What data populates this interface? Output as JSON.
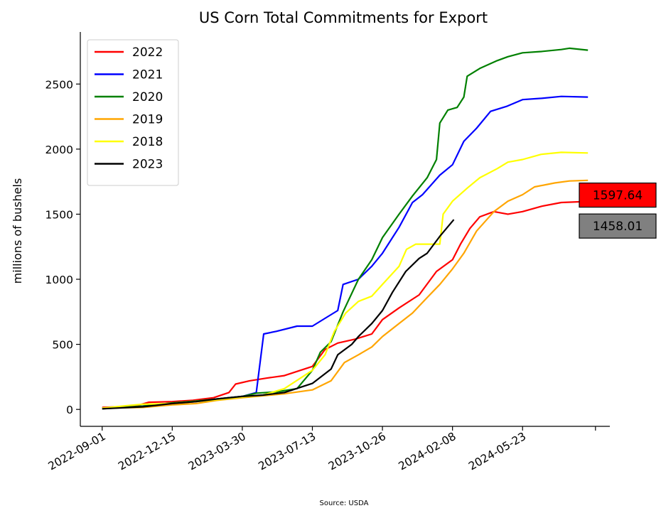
{
  "chart_data": {
    "type": "line",
    "title": "US Corn Total Commitments for Export",
    "xlabel": "",
    "ylabel": "millions of bushels",
    "source": "Source: USDA",
    "x_axis": {
      "start": "2022-09-01",
      "end": "2024-08-29",
      "ticks": [
        "2022-09-01",
        "2022-12-15",
        "2023-03-30",
        "2023-07-13",
        "2023-10-26",
        "2024-02-08",
        "2024-05-23"
      ]
    },
    "ylim": [
      -130,
      2900
    ],
    "y_ticks": [
      0,
      500,
      1000,
      1500,
      2000,
      2500
    ],
    "grid": false,
    "legend_position": "upper-left",
    "series": [
      {
        "name": "2022",
        "color": "#ff0000",
        "points": [
          [
            "2022-09-01",
            15
          ],
          [
            "2022-10-20",
            25
          ],
          [
            "2022-11-10",
            55
          ],
          [
            "2022-12-15",
            60
          ],
          [
            "2023-01-15",
            70
          ],
          [
            "2023-02-15",
            90
          ],
          [
            "2023-03-10",
            130
          ],
          [
            "2023-03-20",
            195
          ],
          [
            "2023-04-10",
            220
          ],
          [
            "2023-05-05",
            240
          ],
          [
            "2023-06-01",
            260
          ],
          [
            "2023-07-13",
            330
          ],
          [
            "2023-08-01",
            460
          ],
          [
            "2023-08-20",
            510
          ],
          [
            "2023-09-15",
            540
          ],
          [
            "2023-10-10",
            580
          ],
          [
            "2023-10-26",
            690
          ],
          [
            "2023-11-20",
            780
          ],
          [
            "2023-12-20",
            880
          ],
          [
            "2024-01-15",
            1060
          ],
          [
            "2024-02-08",
            1150
          ],
          [
            "2024-02-20",
            1270
          ],
          [
            "2024-03-05",
            1390
          ],
          [
            "2024-03-20",
            1480
          ],
          [
            "2024-04-10",
            1520
          ],
          [
            "2024-05-01",
            1500
          ],
          [
            "2024-05-23",
            1520
          ],
          [
            "2024-06-20",
            1560
          ],
          [
            "2024-07-20",
            1590
          ],
          [
            "2024-08-29",
            1598
          ]
        ]
      },
      {
        "name": "2021",
        "color": "#0000ff",
        "points": [
          [
            "2022-09-01",
            10
          ],
          [
            "2022-10-20",
            20
          ],
          [
            "2022-11-20",
            35
          ],
          [
            "2022-12-15",
            45
          ],
          [
            "2023-01-20",
            60
          ],
          [
            "2023-02-20",
            80
          ],
          [
            "2023-03-30",
            100
          ],
          [
            "2023-04-20",
            130
          ],
          [
            "2023-05-01",
            580
          ],
          [
            "2023-05-20",
            600
          ],
          [
            "2023-06-20",
            640
          ],
          [
            "2023-07-13",
            640
          ],
          [
            "2023-08-01",
            700
          ],
          [
            "2023-08-20",
            760
          ],
          [
            "2023-08-28",
            960
          ],
          [
            "2023-09-20",
            1000
          ],
          [
            "2023-10-10",
            1100
          ],
          [
            "2023-10-26",
            1200
          ],
          [
            "2023-11-20",
            1400
          ],
          [
            "2023-12-10",
            1590
          ],
          [
            "2023-12-25",
            1650
          ],
          [
            "2024-01-20",
            1800
          ],
          [
            "2024-02-08",
            1880
          ],
          [
            "2024-02-25",
            2060
          ],
          [
            "2024-03-15",
            2160
          ],
          [
            "2024-04-05",
            2290
          ],
          [
            "2024-04-30",
            2330
          ],
          [
            "2024-05-23",
            2380
          ],
          [
            "2024-06-20",
            2390
          ],
          [
            "2024-07-20",
            2405
          ],
          [
            "2024-08-29",
            2400
          ]
        ]
      },
      {
        "name": "2020",
        "color": "#008000",
        "points": [
          [
            "2022-09-01",
            5
          ],
          [
            "2022-11-01",
            25
          ],
          [
            "2022-12-15",
            50
          ],
          [
            "2023-01-20",
            65
          ],
          [
            "2023-02-20",
            80
          ],
          [
            "2023-03-30",
            100
          ],
          [
            "2023-04-20",
            125
          ],
          [
            "2023-05-20",
            135
          ],
          [
            "2023-06-20",
            160
          ],
          [
            "2023-07-13",
            300
          ],
          [
            "2023-07-25",
            440
          ],
          [
            "2023-08-10",
            520
          ],
          [
            "2023-08-28",
            750
          ],
          [
            "2023-09-20",
            1000
          ],
          [
            "2023-10-10",
            1150
          ],
          [
            "2023-10-26",
            1320
          ],
          [
            "2023-11-20",
            1500
          ],
          [
            "2023-12-10",
            1640
          ],
          [
            "2024-01-01",
            1780
          ],
          [
            "2024-01-15",
            1920
          ],
          [
            "2024-01-20",
            2200
          ],
          [
            "2024-02-01",
            2300
          ],
          [
            "2024-02-15",
            2320
          ],
          [
            "2024-02-25",
            2400
          ],
          [
            "2024-03-01",
            2560
          ],
          [
            "2024-03-20",
            2620
          ],
          [
            "2024-04-15",
            2680
          ],
          [
            "2024-05-01",
            2710
          ],
          [
            "2024-05-23",
            2740
          ],
          [
            "2024-06-20",
            2750
          ],
          [
            "2024-07-20",
            2765
          ],
          [
            "2024-08-01",
            2775
          ],
          [
            "2024-08-29",
            2760
          ]
        ]
      },
      {
        "name": "2019",
        "color": "#ffa500",
        "points": [
          [
            "2022-09-01",
            10
          ],
          [
            "2022-11-01",
            15
          ],
          [
            "2022-12-15",
            35
          ],
          [
            "2023-01-20",
            45
          ],
          [
            "2023-02-20",
            70
          ],
          [
            "2023-03-30",
            90
          ],
          [
            "2023-04-30",
            105
          ],
          [
            "2023-06-01",
            120
          ],
          [
            "2023-07-13",
            150
          ],
          [
            "2023-08-10",
            220
          ],
          [
            "2023-08-30",
            360
          ],
          [
            "2023-09-20",
            420
          ],
          [
            "2023-10-10",
            480
          ],
          [
            "2023-10-26",
            560
          ],
          [
            "2023-11-20",
            660
          ],
          [
            "2023-12-10",
            740
          ],
          [
            "2024-01-01",
            860
          ],
          [
            "2024-01-20",
            960
          ],
          [
            "2024-02-08",
            1080
          ],
          [
            "2024-02-25",
            1200
          ],
          [
            "2024-03-15",
            1370
          ],
          [
            "2024-04-10",
            1520
          ],
          [
            "2024-05-01",
            1600
          ],
          [
            "2024-05-23",
            1650
          ],
          [
            "2024-06-10",
            1710
          ],
          [
            "2024-07-10",
            1740
          ],
          [
            "2024-08-01",
            1755
          ],
          [
            "2024-08-29",
            1760
          ]
        ]
      },
      {
        "name": "2018",
        "color": "#ffff00",
        "points": [
          [
            "2022-09-01",
            10
          ],
          [
            "2022-10-10",
            30
          ],
          [
            "2022-11-01",
            40
          ],
          [
            "2022-12-15",
            45
          ],
          [
            "2023-01-20",
            60
          ],
          [
            "2023-02-20",
            75
          ],
          [
            "2023-03-30",
            95
          ],
          [
            "2023-04-30",
            110
          ],
          [
            "2023-06-01",
            160
          ],
          [
            "2023-07-13",
            300
          ],
          [
            "2023-08-01",
            420
          ],
          [
            "2023-08-15",
            600
          ],
          [
            "2023-09-01",
            740
          ],
          [
            "2023-09-20",
            830
          ],
          [
            "2023-10-10",
            870
          ],
          [
            "2023-10-26",
            960
          ],
          [
            "2023-11-20",
            1100
          ],
          [
            "2023-12-01",
            1230
          ],
          [
            "2023-12-15",
            1270
          ],
          [
            "2024-01-20",
            1270
          ],
          [
            "2024-01-25",
            1500
          ],
          [
            "2024-02-08",
            1600
          ],
          [
            "2024-03-01",
            1700
          ],
          [
            "2024-03-20",
            1780
          ],
          [
            "2024-04-15",
            1850
          ],
          [
            "2024-05-01",
            1900
          ],
          [
            "2024-05-23",
            1920
          ],
          [
            "2024-06-20",
            1960
          ],
          [
            "2024-07-20",
            1975
          ],
          [
            "2024-08-29",
            1970
          ]
        ]
      },
      {
        "name": "2023",
        "color": "#000000",
        "points": [
          [
            "2022-09-01",
            5
          ],
          [
            "2022-11-01",
            20
          ],
          [
            "2022-12-15",
            45
          ],
          [
            "2023-01-20",
            60
          ],
          [
            "2023-02-20",
            80
          ],
          [
            "2023-03-30",
            100
          ],
          [
            "2023-04-30",
            110
          ],
          [
            "2023-06-01",
            130
          ],
          [
            "2023-07-13",
            200
          ],
          [
            "2023-08-10",
            310
          ],
          [
            "2023-08-20",
            420
          ],
          [
            "2023-09-10",
            500
          ],
          [
            "2023-09-20",
            560
          ],
          [
            "2023-10-10",
            660
          ],
          [
            "2023-10-26",
            760
          ],
          [
            "2023-11-10",
            900
          ],
          [
            "2023-11-30",
            1060
          ],
          [
            "2023-12-20",
            1160
          ],
          [
            "2024-01-01",
            1200
          ],
          [
            "2024-01-20",
            1330
          ],
          [
            "2024-02-10",
            1458
          ]
        ]
      }
    ],
    "annotations": [
      {
        "text": "1597.64",
        "value": 1597.64,
        "background": "#ff0000"
      },
      {
        "text": "1458.01",
        "value": 1458.01,
        "background": "#808080"
      }
    ]
  }
}
